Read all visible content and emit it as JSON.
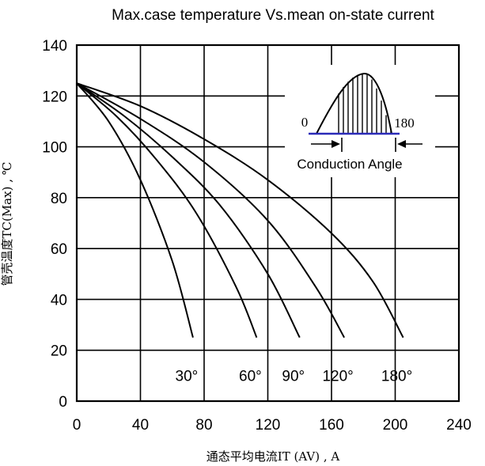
{
  "chart_data": {
    "type": "line",
    "title": "Max.case temperature Vs.mean on-state current",
    "xlabel": "通态平均电流IT (AV) , A",
    "ylabel": "管壳温度TC(Max) , ℃",
    "xlim": [
      0,
      240
    ],
    "ylim": [
      0,
      140
    ],
    "x_ticks": [
      "0",
      "40",
      "80",
      "120",
      "160",
      "200",
      "240"
    ],
    "y_ticks": [
      "0",
      "20",
      "40",
      "60",
      "80",
      "100",
      "120",
      "140"
    ],
    "grid": true,
    "series": [
      {
        "name": "30°",
        "x": [
          0,
          20,
          40,
          60,
          73
        ],
        "y": [
          125,
          110,
          87,
          55,
          25
        ]
      },
      {
        "name": "60°",
        "x": [
          0,
          25,
          50,
          75,
          100,
          113
        ],
        "y": [
          125,
          112,
          95,
          74,
          45,
          25
        ]
      },
      {
        "name": "90°",
        "x": [
          0,
          30,
          60,
          90,
          120,
          140
        ],
        "y": [
          125,
          112,
          96,
          77,
          50,
          25
        ]
      },
      {
        "name": "120°",
        "x": [
          0,
          40,
          80,
          120,
          150,
          168
        ],
        "y": [
          125,
          111,
          94,
          71,
          45,
          25
        ]
      },
      {
        "name": "180°",
        "x": [
          0,
          40,
          80,
          120,
          160,
          186,
          205
        ],
        "y": [
          125,
          116,
          103,
          87,
          66,
          47,
          25
        ]
      }
    ],
    "inset": {
      "caption": "Conduction Angle",
      "start_label": "0",
      "end_label": "180"
    }
  }
}
